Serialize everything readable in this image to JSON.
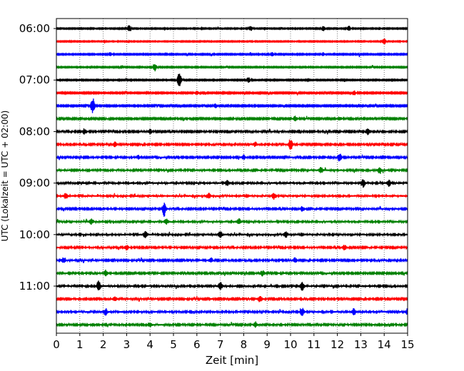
{
  "chart_data": {
    "type": "line",
    "title": "",
    "xlabel": "Zeit  [min]",
    "ylabel": "UTC (Lokalzeit = UTC + 02:00)",
    "xlim": [
      0,
      15
    ],
    "x_ticks": [
      "0",
      "1",
      "2",
      "3",
      "4",
      "5",
      "6",
      "7",
      "8",
      "9",
      "10",
      "11",
      "12",
      "13",
      "14",
      "15"
    ],
    "y_tick_labels": [
      "06:00",
      "07:00",
      "08:00",
      "09:00",
      "10:00",
      "11:00"
    ],
    "grid": "vertical dotted lines at each minute",
    "trace_colors": [
      "#000000",
      "#ff0000",
      "#0000ff",
      "#008000"
    ],
    "traces": [
      {
        "start": "06:00",
        "activity": 0.25,
        "events": [
          [
            3.1,
            0.9
          ],
          [
            8.3,
            0.8
          ],
          [
            11.4,
            0.7
          ],
          [
            12.5,
            0.7
          ]
        ]
      },
      {
        "start": "06:15",
        "activity": 0.2,
        "events": [
          [
            14.0,
            0.9
          ]
        ]
      },
      {
        "start": "06:30",
        "activity": 0.35,
        "events": [
          [
            2.3,
            0.6
          ],
          [
            9.2,
            0.6
          ],
          [
            11.4,
            0.5
          ]
        ]
      },
      {
        "start": "06:45",
        "activity": 0.3,
        "events": [
          [
            4.2,
            1.2
          ],
          [
            2.8,
            0.5
          ]
        ]
      },
      {
        "start": "07:00",
        "activity": 0.35,
        "events": [
          [
            5.25,
            2.2
          ],
          [
            8.2,
            0.8
          ]
        ]
      },
      {
        "start": "07:15",
        "activity": 0.45,
        "events": [
          [
            6.0,
            0.6
          ],
          [
            12.7,
            0.7
          ]
        ]
      },
      {
        "start": "07:30",
        "activity": 0.5,
        "events": [
          [
            1.55,
            2.5
          ],
          [
            6.8,
            0.6
          ]
        ]
      },
      {
        "start": "07:45",
        "activity": 0.6,
        "events": [
          [
            10.2,
            0.7
          ],
          [
            12.1,
            0.6
          ]
        ]
      },
      {
        "start": "08:00",
        "activity": 0.7,
        "events": [
          [
            1.2,
            0.8
          ],
          [
            4.0,
            0.7
          ],
          [
            13.3,
            1.0
          ]
        ]
      },
      {
        "start": "08:15",
        "activity": 0.7,
        "events": [
          [
            10.0,
            1.8
          ],
          [
            2.5,
            0.7
          ],
          [
            8.5,
            0.7
          ]
        ]
      },
      {
        "start": "08:30",
        "activity": 0.7,
        "events": [
          [
            12.1,
            1.4
          ],
          [
            3.5,
            0.6
          ],
          [
            8.0,
            0.6
          ]
        ]
      },
      {
        "start": "08:45",
        "activity": 0.8,
        "events": [
          [
            11.3,
            0.9
          ],
          [
            13.8,
            0.8
          ]
        ]
      },
      {
        "start": "09:00",
        "activity": 0.85,
        "events": [
          [
            13.1,
            1.2
          ],
          [
            14.2,
            0.9
          ],
          [
            7.3,
            0.8
          ]
        ]
      },
      {
        "start": "09:15",
        "activity": 0.9,
        "events": [
          [
            9.3,
            1.0
          ],
          [
            0.4,
            0.8
          ],
          [
            6.5,
            0.8
          ]
        ]
      },
      {
        "start": "09:30",
        "activity": 0.75,
        "events": [
          [
            4.6,
            2.2
          ],
          [
            10.5,
            0.8
          ]
        ]
      },
      {
        "start": "09:45",
        "activity": 0.85,
        "events": [
          [
            1.5,
            0.8
          ],
          [
            4.7,
            0.8
          ],
          [
            7.8,
            0.8
          ]
        ]
      },
      {
        "start": "10:00",
        "activity": 0.9,
        "events": [
          [
            3.8,
            1.0
          ],
          [
            7.0,
            1.0
          ],
          [
            9.8,
            0.8
          ]
        ]
      },
      {
        "start": "10:15",
        "activity": 0.75,
        "events": [
          [
            3.0,
            0.8
          ],
          [
            12.3,
            0.7
          ]
        ]
      },
      {
        "start": "10:30",
        "activity": 0.7,
        "events": [
          [
            0.3,
            0.8
          ],
          [
            6.6,
            0.7
          ],
          [
            10.2,
            0.8
          ]
        ]
      },
      {
        "start": "10:45",
        "activity": 0.7,
        "events": [
          [
            2.1,
            0.9
          ],
          [
            8.8,
            0.8
          ]
        ]
      },
      {
        "start": "11:00",
        "activity": 0.85,
        "events": [
          [
            1.8,
            1.5
          ],
          [
            7.0,
            1.2
          ],
          [
            10.5,
            1.3
          ]
        ]
      },
      {
        "start": "11:15",
        "activity": 0.7,
        "events": [
          [
            8.7,
            1.0
          ],
          [
            2.5,
            0.7
          ]
        ]
      },
      {
        "start": "11:30",
        "activity": 0.8,
        "events": [
          [
            2.1,
            1.0
          ],
          [
            10.5,
            1.2
          ],
          [
            12.7,
            1.0
          ],
          [
            15.0,
            1.0
          ]
        ]
      },
      {
        "start": "11:45",
        "activity": 0.75,
        "events": [
          [
            4.0,
            0.8
          ],
          [
            8.5,
            0.8
          ]
        ]
      }
    ]
  }
}
